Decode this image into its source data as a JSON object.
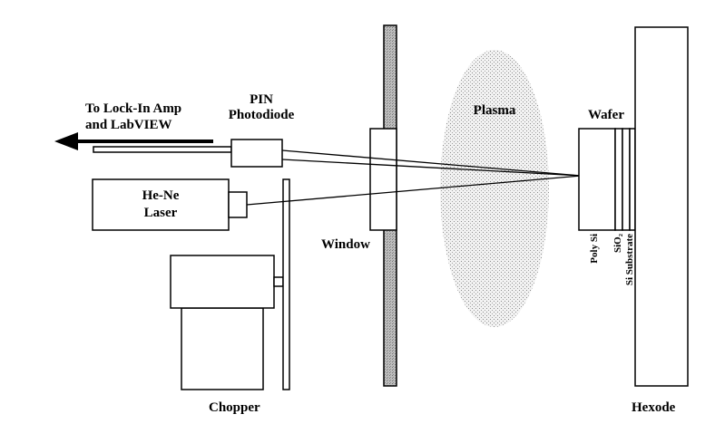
{
  "diagram": {
    "labels": {
      "lockin": "To Lock-In Amp",
      "labview": "and LabVIEW",
      "pin": "PIN",
      "photodiode": "Photodiode",
      "laser_line1": "He-Ne",
      "laser_line2": "Laser",
      "plasma": "Plasma",
      "window": "Window",
      "wafer": "Wafer",
      "poly_si": "Poly Si",
      "sio2": "SiO₂",
      "si_substrate": "Si Substrate",
      "chopper": "Chopper",
      "hexode": "Hexode"
    }
  }
}
